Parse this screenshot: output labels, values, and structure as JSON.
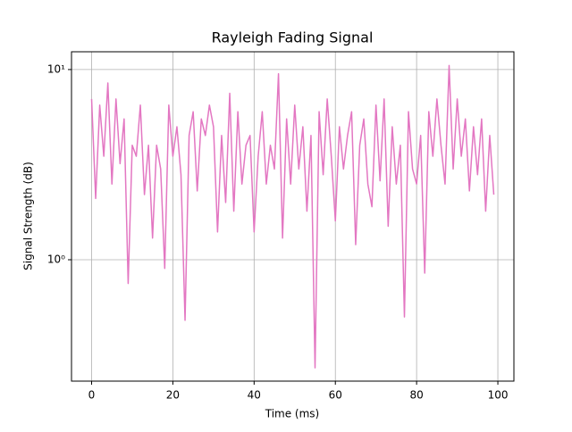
{
  "chart_data": {
    "type": "line",
    "title": "Rayleigh Fading Signal",
    "x_label": "Time (ms)",
    "y_label": "Signal Strength (dB)",
    "x": [
      0,
      1,
      2,
      3,
      4,
      5,
      6,
      7,
      8,
      9,
      10,
      11,
      12,
      13,
      14,
      15,
      16,
      17,
      18,
      19,
      20,
      21,
      22,
      23,
      24,
      25,
      26,
      27,
      28,
      29,
      30,
      31,
      32,
      33,
      34,
      35,
      36,
      37,
      38,
      39,
      40,
      41,
      42,
      43,
      44,
      45,
      46,
      47,
      48,
      49,
      50,
      51,
      52,
      53,
      54,
      55,
      56,
      57,
      58,
      59,
      60,
      61,
      62,
      63,
      64,
      65,
      66,
      67,
      68,
      69,
      70,
      71,
      72,
      73,
      74,
      75,
      76,
      77,
      78,
      79,
      80,
      81,
      82,
      83,
      84,
      85,
      86,
      87,
      88,
      89,
      90,
      91,
      92,
      93,
      94,
      95,
      96,
      97,
      98,
      99
    ],
    "series": [
      {
        "color": "#e377c2",
        "values": [
          7,
          2.1,
          6.5,
          3.5,
          8.5,
          2.5,
          7,
          3.2,
          5.5,
          0.75,
          4,
          3.5,
          6.5,
          2.2,
          4,
          1.3,
          4,
          3,
          0.9,
          6.5,
          3.5,
          5,
          2.8,
          0.48,
          4.5,
          6,
          2.3,
          5.5,
          4.5,
          6.5,
          5,
          1.4,
          4.5,
          2,
          7.5,
          1.8,
          6,
          2.5,
          4,
          4.5,
          1.4,
          3.5,
          6,
          2.5,
          4,
          3,
          9.5,
          1.3,
          5.5,
          2.5,
          6.5,
          3,
          5,
          1.8,
          4.5,
          0.27,
          6,
          2.8,
          7,
          3.5,
          1.6,
          5,
          3,
          4.5,
          6,
          1.2,
          4,
          5.5,
          2.5,
          1.9,
          6.5,
          2.6,
          7,
          1.5,
          5,
          2.5,
          4,
          0.5,
          6,
          3,
          2.5,
          4.5,
          0.85,
          6,
          3.5,
          7,
          4,
          2.5,
          10.5,
          3,
          7,
          3.5,
          5.5,
          2.3,
          5,
          2.8,
          5.5,
          1.8,
          4.5,
          2.2
        ]
      }
    ],
    "xlim": [
      -4.95,
      103.95
    ],
    "xticks": [
      0,
      20,
      40,
      60,
      80,
      100
    ],
    "ylim": [
      0.23,
      12.4
    ],
    "yscale": "log",
    "yticks": [
      {
        "value": 1,
        "label": "10⁰"
      },
      {
        "value": 10,
        "label": "10¹"
      }
    ],
    "grid": true
  }
}
